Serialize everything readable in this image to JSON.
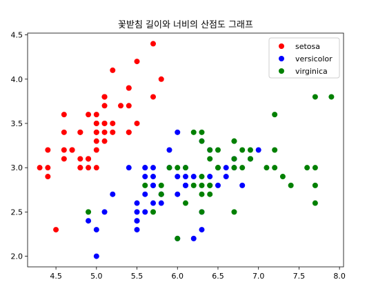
{
  "chart_data": {
    "type": "scatter",
    "title": "꽃받침 길이와 너비의 산점도 그래프",
    "xlabel": "",
    "ylabel": "",
    "xlim": [
      4.15,
      8.05
    ],
    "ylim": [
      1.88,
      4.52
    ],
    "xticks": [
      "4.5",
      "5.0",
      "5.5",
      "6.0",
      "6.5",
      "7.0",
      "7.5",
      "8.0"
    ],
    "yticks": [
      "2.0",
      "2.5",
      "3.0",
      "3.5",
      "4.0",
      "4.5"
    ],
    "grid": false,
    "legend_position": "top-right",
    "series": [
      {
        "name": "setosa",
        "color": "#ff0000",
        "points": [
          [
            5.1,
            3.5
          ],
          [
            4.9,
            3.0
          ],
          [
            4.7,
            3.2
          ],
          [
            4.6,
            3.1
          ],
          [
            5.0,
            3.6
          ],
          [
            5.4,
            3.9
          ],
          [
            4.6,
            3.4
          ],
          [
            5.0,
            3.4
          ],
          [
            4.4,
            2.9
          ],
          [
            4.9,
            3.1
          ],
          [
            5.4,
            3.7
          ],
          [
            4.8,
            3.4
          ],
          [
            4.8,
            3.0
          ],
          [
            4.3,
            3.0
          ],
          [
            5.8,
            4.0
          ],
          [
            5.7,
            4.4
          ],
          [
            5.4,
            3.9
          ],
          [
            5.1,
            3.5
          ],
          [
            5.7,
            3.8
          ],
          [
            5.1,
            3.8
          ],
          [
            5.4,
            3.4
          ],
          [
            5.1,
            3.7
          ],
          [
            4.6,
            3.6
          ],
          [
            5.1,
            3.3
          ],
          [
            4.8,
            3.4
          ],
          [
            5.0,
            3.0
          ],
          [
            5.0,
            3.4
          ],
          [
            5.2,
            3.5
          ],
          [
            5.2,
            3.4
          ],
          [
            4.7,
            3.2
          ],
          [
            4.8,
            3.1
          ],
          [
            5.4,
            3.4
          ],
          [
            5.2,
            4.1
          ],
          [
            5.5,
            4.2
          ],
          [
            4.9,
            3.1
          ],
          [
            5.0,
            3.2
          ],
          [
            5.5,
            3.5
          ],
          [
            4.9,
            3.6
          ],
          [
            4.4,
            3.0
          ],
          [
            5.1,
            3.4
          ],
          [
            5.0,
            3.5
          ],
          [
            4.5,
            2.3
          ],
          [
            4.4,
            3.2
          ],
          [
            5.0,
            3.5
          ],
          [
            5.1,
            3.8
          ],
          [
            4.8,
            3.0
          ],
          [
            5.1,
            3.8
          ],
          [
            4.6,
            3.2
          ],
          [
            5.3,
            3.7
          ],
          [
            5.0,
            3.3
          ]
        ]
      },
      {
        "name": "versicolor",
        "color": "#0000ff",
        "points": [
          [
            7.0,
            3.2
          ],
          [
            6.4,
            3.2
          ],
          [
            6.9,
            3.1
          ],
          [
            5.5,
            2.3
          ],
          [
            6.5,
            2.8
          ],
          [
            5.7,
            2.8
          ],
          [
            6.3,
            3.3
          ],
          [
            4.9,
            2.4
          ],
          [
            6.6,
            2.9
          ],
          [
            5.2,
            2.7
          ],
          [
            5.0,
            2.0
          ],
          [
            5.9,
            3.0
          ],
          [
            6.0,
            2.2
          ],
          [
            6.1,
            2.9
          ],
          [
            5.6,
            2.9
          ],
          [
            6.7,
            3.1
          ],
          [
            5.6,
            3.0
          ],
          [
            5.8,
            2.7
          ],
          [
            6.2,
            2.2
          ],
          [
            5.6,
            2.5
          ],
          [
            5.9,
            3.2
          ],
          [
            6.1,
            2.8
          ],
          [
            6.3,
            2.5
          ],
          [
            6.1,
            2.8
          ],
          [
            6.4,
            2.9
          ],
          [
            6.6,
            3.0
          ],
          [
            6.8,
            2.8
          ],
          [
            6.7,
            3.0
          ],
          [
            6.0,
            2.9
          ],
          [
            5.7,
            2.6
          ],
          [
            5.5,
            2.4
          ],
          [
            5.5,
            2.4
          ],
          [
            5.8,
            2.7
          ],
          [
            6.0,
            2.7
          ],
          [
            5.4,
            3.0
          ],
          [
            6.0,
            3.4
          ],
          [
            6.7,
            3.1
          ],
          [
            6.3,
            2.3
          ],
          [
            5.6,
            3.0
          ],
          [
            5.5,
            2.5
          ],
          [
            5.5,
            2.6
          ],
          [
            6.1,
            3.0
          ],
          [
            5.8,
            2.6
          ],
          [
            5.0,
            2.3
          ],
          [
            5.6,
            2.7
          ],
          [
            5.7,
            3.0
          ],
          [
            5.7,
            2.9
          ],
          [
            6.2,
            2.9
          ],
          [
            5.1,
            2.5
          ],
          [
            5.7,
            2.8
          ]
        ]
      },
      {
        "name": "virginica",
        "color": "#008000",
        "points": [
          [
            6.3,
            3.3
          ],
          [
            5.8,
            2.7
          ],
          [
            7.1,
            3.0
          ],
          [
            6.3,
            2.9
          ],
          [
            6.5,
            3.0
          ],
          [
            7.6,
            3.0
          ],
          [
            4.9,
            2.5
          ],
          [
            7.3,
            2.9
          ],
          [
            6.7,
            2.5
          ],
          [
            7.2,
            3.6
          ],
          [
            6.5,
            3.2
          ],
          [
            6.4,
            2.7
          ],
          [
            6.8,
            3.0
          ],
          [
            5.7,
            2.5
          ],
          [
            5.8,
            2.8
          ],
          [
            6.4,
            3.2
          ],
          [
            6.5,
            3.0
          ],
          [
            7.7,
            3.8
          ],
          [
            7.7,
            2.6
          ],
          [
            6.0,
            2.2
          ],
          [
            6.9,
            3.2
          ],
          [
            5.6,
            2.8
          ],
          [
            7.7,
            2.8
          ],
          [
            6.3,
            2.7
          ],
          [
            6.7,
            3.3
          ],
          [
            7.2,
            3.2
          ],
          [
            6.2,
            2.8
          ],
          [
            6.1,
            3.0
          ],
          [
            6.4,
            2.8
          ],
          [
            7.2,
            3.0
          ],
          [
            7.4,
            2.8
          ],
          [
            7.9,
            3.8
          ],
          [
            6.4,
            2.8
          ],
          [
            6.3,
            2.8
          ],
          [
            6.1,
            2.6
          ],
          [
            7.7,
            3.0
          ],
          [
            6.3,
            3.4
          ],
          [
            6.4,
            3.1
          ],
          [
            6.0,
            3.0
          ],
          [
            6.9,
            3.1
          ],
          [
            6.7,
            3.1
          ],
          [
            6.9,
            3.1
          ],
          [
            5.8,
            2.7
          ],
          [
            6.8,
            3.2
          ],
          [
            6.7,
            3.3
          ],
          [
            6.7,
            3.0
          ],
          [
            6.3,
            2.5
          ],
          [
            6.5,
            3.0
          ],
          [
            6.2,
            3.4
          ],
          [
            5.9,
            3.0
          ]
        ]
      }
    ]
  }
}
